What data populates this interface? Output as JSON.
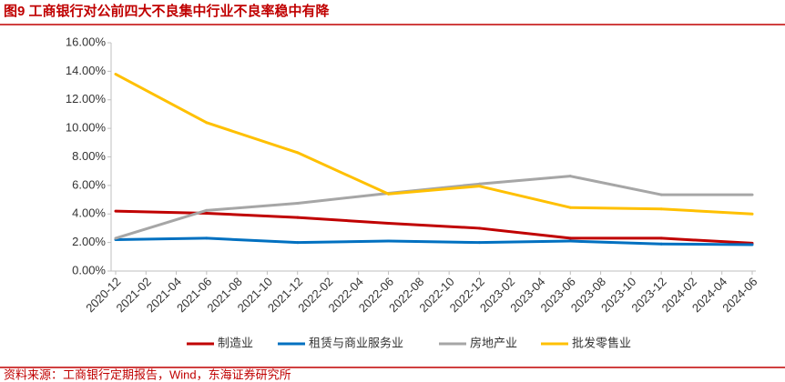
{
  "chart_data": {
    "type": "line",
    "title": "图9  工商银行对公前四大不良集中行业不良率稳中有降",
    "source": "资料来源：工商银行定期报告，Wind，东海证券研究所",
    "categories": [
      "2020-12",
      "2021-02",
      "2021-04",
      "2021-06",
      "2021-08",
      "2021-10",
      "2021-12",
      "2022-02",
      "2022-04",
      "2022-06",
      "2022-08",
      "2022-10",
      "2022-12",
      "2023-02",
      "2023-04",
      "2023-06",
      "2023-08",
      "2023-10",
      "2023-12",
      "2024-02",
      "2024-04",
      "2024-06"
    ],
    "series": [
      {
        "name": "制造业",
        "color": "#c00000",
        "values": [
          4.2,
          null,
          null,
          4.05,
          null,
          null,
          3.75,
          null,
          null,
          3.35,
          null,
          null,
          3.0,
          null,
          null,
          2.3,
          null,
          null,
          2.3,
          null,
          null,
          1.95
        ]
      },
      {
        "name": "租赁与商业服务业",
        "color": "#0070c0",
        "values": [
          2.2,
          null,
          null,
          2.3,
          null,
          null,
          2.0,
          null,
          null,
          2.1,
          null,
          null,
          2.0,
          null,
          null,
          2.1,
          null,
          null,
          1.9,
          null,
          null,
          1.85
        ]
      },
      {
        "name": "房地产业",
        "color": "#a6a6a6",
        "values": [
          2.3,
          null,
          null,
          4.25,
          null,
          null,
          4.75,
          null,
          null,
          5.45,
          null,
          null,
          6.1,
          null,
          null,
          6.65,
          null,
          null,
          5.35,
          null,
          null,
          5.35
        ]
      },
      {
        "name": "批发零售业",
        "color": "#ffc000",
        "values": [
          13.8,
          null,
          null,
          10.4,
          null,
          null,
          8.3,
          null,
          null,
          5.4,
          null,
          null,
          5.95,
          null,
          null,
          4.45,
          null,
          null,
          4.35,
          null,
          null,
          4.0
        ]
      }
    ],
    "ylim": [
      0,
      16
    ],
    "yticks": [
      {
        "value": 0,
        "label": "0.00%"
      },
      {
        "value": 2,
        "label": "2.00%"
      },
      {
        "value": 4,
        "label": "4.00%"
      },
      {
        "value": 6,
        "label": "6.00%"
      },
      {
        "value": 8,
        "label": "8.00%"
      },
      {
        "value": 10,
        "label": "10.00%"
      },
      {
        "value": 12,
        "label": "12.00%"
      },
      {
        "value": 14,
        "label": "14.00%"
      },
      {
        "value": 16,
        "label": "16.00%"
      }
    ],
    "legend": "bottom"
  }
}
